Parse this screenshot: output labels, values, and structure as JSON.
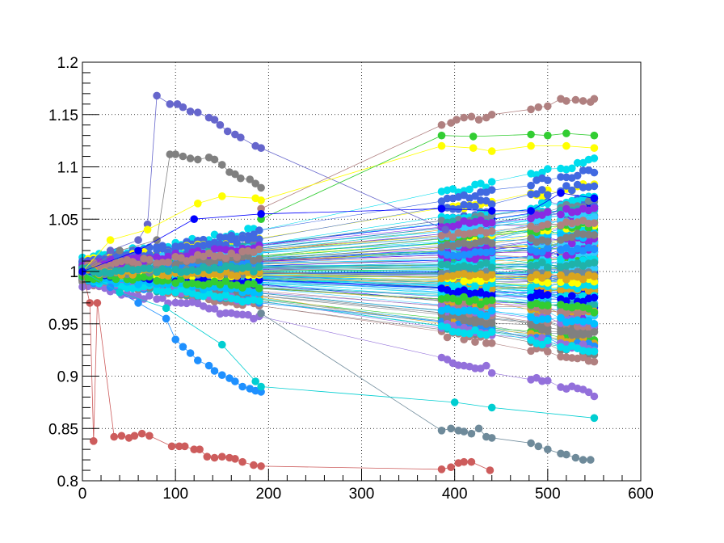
{
  "chart_data": {
    "type": "scatter",
    "title": "",
    "xlabel": "",
    "ylabel": "",
    "xlim": [
      0,
      600
    ],
    "ylim": [
      0.8,
      1.2
    ],
    "grid": true,
    "x_ticks": [
      "0",
      "100",
      "200",
      "300",
      "400",
      "500",
      "600"
    ],
    "y_ticks": [
      "0.8",
      "0.85",
      "0.9",
      "0.95",
      "1",
      "1.05",
      "1.1",
      "1.15",
      "1.2"
    ],
    "x_tick_values": [
      0,
      100,
      200,
      300,
      400,
      500,
      600
    ],
    "y_tick_values": [
      0.8,
      0.85,
      0.9,
      0.95,
      1.0,
      1.05,
      1.1,
      1.15,
      1.2
    ],
    "x_sample_points": [
      0,
      6,
      12,
      18,
      24,
      30,
      36,
      42,
      48,
      54,
      60,
      66,
      72,
      80,
      86,
      92,
      100,
      106,
      112,
      118,
      124,
      130,
      136,
      142,
      148,
      154,
      160,
      166,
      172,
      178,
      184,
      190,
      386,
      392,
      398,
      404,
      410,
      416,
      422,
      428,
      434,
      440,
      482,
      488,
      494,
      500,
      514,
      520,
      526,
      532,
      538,
      544,
      550
    ],
    "n_series_drawn": 140,
    "series": [
      {
        "color": "#cd5c5c",
        "points": [
          [
            0,
            1.0
          ],
          [
            8,
            0.97
          ],
          [
            12,
            0.838
          ],
          [
            16,
            0.97
          ],
          [
            34,
            0.842
          ],
          [
            42,
            0.843
          ],
          [
            50,
            0.841
          ],
          [
            56,
            0.843
          ],
          [
            64,
            0.845
          ],
          [
            72,
            0.843
          ],
          [
            96,
            0.833
          ],
          [
            104,
            0.833
          ],
          [
            110,
            0.833
          ],
          [
            120,
            0.83
          ],
          [
            126,
            0.83
          ],
          [
            134,
            0.823
          ],
          [
            142,
            0.822
          ],
          [
            150,
            0.823
          ],
          [
            158,
            0.822
          ],
          [
            164,
            0.821
          ],
          [
            172,
            0.818
          ],
          [
            184,
            0.815
          ],
          [
            192,
            0.814
          ],
          [
            386,
            0.811
          ],
          [
            396,
            0.813
          ],
          [
            404,
            0.817
          ],
          [
            410,
            0.818
          ],
          [
            418,
            0.818
          ],
          [
            438,
            0.81
          ]
        ]
      },
      {
        "color": "#6666cc",
        "points": [
          [
            0,
            1.0
          ],
          [
            30,
            1.02
          ],
          [
            60,
            1.03
          ],
          [
            70,
            1.045
          ],
          [
            80,
            1.168
          ],
          [
            94,
            1.16
          ],
          [
            102,
            1.16
          ],
          [
            108,
            1.157
          ],
          [
            116,
            1.153
          ],
          [
            124,
            1.152
          ],
          [
            136,
            1.147
          ],
          [
            142,
            1.145
          ],
          [
            148,
            1.14
          ],
          [
            156,
            1.134
          ],
          [
            164,
            1.131
          ],
          [
            170,
            1.128
          ],
          [
            186,
            1.12
          ],
          [
            192,
            1.118
          ],
          [
            390,
            1.04
          ]
        ]
      },
      {
        "color": "#808080",
        "points": [
          [
            0,
            1.0
          ],
          [
            40,
            1.02
          ],
          [
            80,
            1.03
          ],
          [
            94,
            1.112
          ],
          [
            100,
            1.112
          ],
          [
            108,
            1.11
          ],
          [
            116,
            1.108
          ],
          [
            124,
            1.107
          ],
          [
            136,
            1.109
          ],
          [
            142,
            1.107
          ],
          [
            150,
            1.102
          ],
          [
            158,
            1.095
          ],
          [
            164,
            1.093
          ],
          [
            170,
            1.089
          ],
          [
            180,
            1.088
          ],
          [
            186,
            1.084
          ],
          [
            192,
            1.08
          ]
        ]
      },
      {
        "color": "#b08080",
        "points": [
          [
            192,
            1.06
          ],
          [
            386,
            1.14
          ],
          [
            396,
            1.142
          ],
          [
            402,
            1.145
          ],
          [
            410,
            1.147
          ],
          [
            418,
            1.148
          ],
          [
            426,
            1.145
          ],
          [
            434,
            1.147
          ],
          [
            440,
            1.15
          ],
          [
            482,
            1.155
          ],
          [
            490,
            1.157
          ],
          [
            500,
            1.158
          ],
          [
            514,
            1.165
          ],
          [
            520,
            1.163
          ],
          [
            530,
            1.164
          ],
          [
            538,
            1.163
          ],
          [
            546,
            1.162
          ],
          [
            550,
            1.165
          ]
        ]
      },
      {
        "color": "#6e8a9a",
        "points": [
          [
            192,
            0.96
          ],
          [
            386,
            0.848
          ],
          [
            396,
            0.85
          ],
          [
            404,
            0.848
          ],
          [
            410,
            0.847
          ],
          [
            418,
            0.845
          ],
          [
            426,
            0.85
          ],
          [
            434,
            0.842
          ],
          [
            440,
            0.841
          ],
          [
            482,
            0.836
          ],
          [
            490,
            0.833
          ],
          [
            500,
            0.83
          ],
          [
            514,
            0.826
          ],
          [
            520,
            0.825
          ],
          [
            530,
            0.822
          ],
          [
            538,
            0.82
          ],
          [
            546,
            0.82
          ]
        ]
      },
      {
        "color": "#1e90ff",
        "points": [
          [
            0,
            1.0
          ],
          [
            30,
            0.985
          ],
          [
            60,
            0.97
          ],
          [
            90,
            0.955
          ],
          [
            100,
            0.935
          ],
          [
            108,
            0.928
          ],
          [
            116,
            0.922
          ],
          [
            124,
            0.915
          ],
          [
            136,
            0.91
          ],
          [
            142,
            0.905
          ],
          [
            150,
            0.901
          ],
          [
            158,
            0.898
          ],
          [
            164,
            0.895
          ],
          [
            172,
            0.89
          ],
          [
            180,
            0.888
          ],
          [
            186,
            0.886
          ],
          [
            192,
            0.885
          ]
        ]
      },
      {
        "color": "#00ced1",
        "points": [
          [
            0,
            1.0
          ],
          [
            40,
            0.98
          ],
          [
            90,
            0.965
          ],
          [
            150,
            0.93
          ],
          [
            186,
            0.895
          ],
          [
            192,
            0.89
          ],
          [
            400,
            0.875
          ],
          [
            440,
            0.87
          ],
          [
            550,
            0.86
          ]
        ]
      },
      {
        "color": "#ffff00",
        "points": [
          [
            0,
            1.0
          ],
          [
            30,
            1.03
          ],
          [
            70,
            1.04
          ],
          [
            124,
            1.065
          ],
          [
            150,
            1.072
          ],
          [
            186,
            1.07
          ],
          [
            192,
            1.068
          ],
          [
            386,
            1.12
          ],
          [
            420,
            1.118
          ],
          [
            440,
            1.115
          ],
          [
            482,
            1.12
          ],
          [
            520,
            1.12
          ],
          [
            550,
            1.118
          ]
        ]
      },
      {
        "color": "#32cd32",
        "points": [
          [
            192,
            1.05
          ],
          [
            386,
            1.13
          ],
          [
            420,
            1.129
          ],
          [
            482,
            1.131
          ],
          [
            500,
            1.13
          ],
          [
            520,
            1.132
          ],
          [
            550,
            1.13
          ]
        ]
      },
      {
        "color": "#0000ff",
        "points": [
          [
            0,
            1.0
          ],
          [
            60,
            1.02
          ],
          [
            120,
            1.05
          ],
          [
            192,
            1.055
          ],
          [
            386,
            1.06
          ],
          [
            440,
            1.058
          ],
          [
            482,
            1.058
          ],
          [
            514,
            1.075
          ],
          [
            550,
            1.07
          ]
        ]
      }
    ]
  }
}
